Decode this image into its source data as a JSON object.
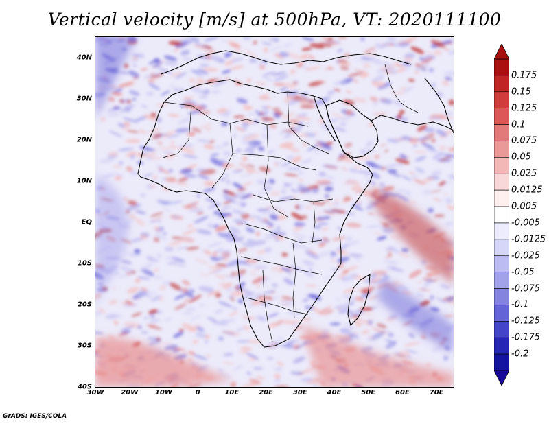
{
  "title": "Vertical velocity [m/s] at 500hPa, VT: 2020111100",
  "credit": "GrADS: IGES/COLA",
  "map": {
    "lon_range": [
      -30,
      75
    ],
    "lat_range": [
      -40,
      45
    ],
    "lat_ticks": [
      "40N",
      "30N",
      "20N",
      "10N",
      "EQ",
      "10S",
      "20S",
      "30S",
      "40S"
    ],
    "lon_ticks": [
      "30W",
      "20W",
      "10W",
      "0",
      "10E",
      "20E",
      "30E",
      "40E",
      "50E",
      "60E",
      "70E"
    ]
  },
  "colorbar": {
    "labels": [
      "0.175",
      "0.15",
      "0.125",
      "0.1",
      "0.075",
      "0.05",
      "0.025",
      "0.0125",
      "0.005",
      "-0.005",
      "-0.0125",
      "-0.025",
      "-0.05",
      "-0.075",
      "-0.1",
      "-0.125",
      "-0.175",
      "-0.2"
    ],
    "colors": [
      "#aa1010",
      "#c02424",
      "#d03c3c",
      "#dc5858",
      "#e27a7a",
      "#ea9898",
      "#f2b8b8",
      "#f8d8d8",
      "#fff0f0",
      "#ffffff",
      "#ececfc",
      "#d6d6f8",
      "#bcbcf2",
      "#a2a2ea",
      "#8484e0",
      "#6464d6",
      "#4444c8",
      "#2626b4",
      "#1414a0"
    ],
    "top_arrow_color": "#a81010",
    "bottom_arrow_color": "#1a0a9a"
  },
  "map_colors": {
    "background": "#ecebfa",
    "blue_light": "#c9c6f3",
    "blue_mid": "#9f9be8",
    "blue_dark": "#6c66d8",
    "red_light": "#f4bcbc",
    "red_mid": "#e88f8f",
    "red_dark": "#c23a3a",
    "coastline": "#000000"
  }
}
